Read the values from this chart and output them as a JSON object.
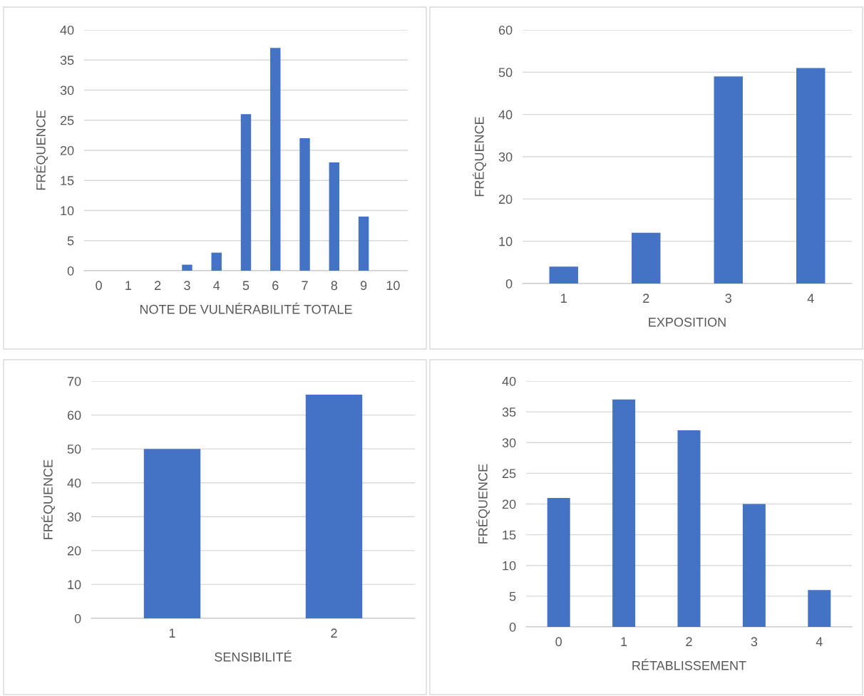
{
  "chart_data": [
    {
      "type": "bar",
      "xlabel": "NOTE DE VULNÉRABILITÉ TOTALE",
      "ylabel": "FRÉQUENCE",
      "categories": [
        "0",
        "1",
        "2",
        "3",
        "4",
        "5",
        "6",
        "7",
        "8",
        "9",
        "10"
      ],
      "values": [
        0,
        0,
        0,
        1,
        3,
        26,
        37,
        22,
        18,
        9,
        0
      ],
      "color": "#4472c4",
      "ylim": [
        0,
        40
      ],
      "yticks": [
        0,
        5,
        10,
        15,
        20,
        25,
        30,
        35,
        40
      ],
      "grid": "y",
      "legend": false
    },
    {
      "type": "bar",
      "xlabel": "EXPOSITION",
      "ylabel": "FRÉQUENCE",
      "categories": [
        "1",
        "2",
        "3",
        "4"
      ],
      "values": [
        4,
        12,
        49,
        51
      ],
      "color": "#4472c4",
      "ylim": [
        0,
        60
      ],
      "yticks": [
        0,
        10,
        20,
        30,
        40,
        50,
        60
      ],
      "grid": "y",
      "legend": false
    },
    {
      "type": "bar",
      "xlabel": "SENSIBILITÉ",
      "ylabel": "FRÉQUENCE",
      "categories": [
        "1",
        "2"
      ],
      "values": [
        50,
        66
      ],
      "color": "#4472c4",
      "ylim": [
        0,
        70
      ],
      "yticks": [
        0,
        10,
        20,
        30,
        40,
        50,
        60,
        70
      ],
      "grid": "y",
      "legend": false
    },
    {
      "type": "bar",
      "xlabel": "RÉTABLISSEMENT",
      "ylabel": "FRÉQUENCE",
      "categories": [
        "0",
        "1",
        "2",
        "3",
        "4"
      ],
      "values": [
        21,
        37,
        32,
        20,
        6
      ],
      "color": "#4472c4",
      "ylim": [
        0,
        40
      ],
      "yticks": [
        0,
        5,
        10,
        15,
        20,
        25,
        30,
        35,
        40
      ],
      "grid": "y",
      "legend": false
    }
  ]
}
